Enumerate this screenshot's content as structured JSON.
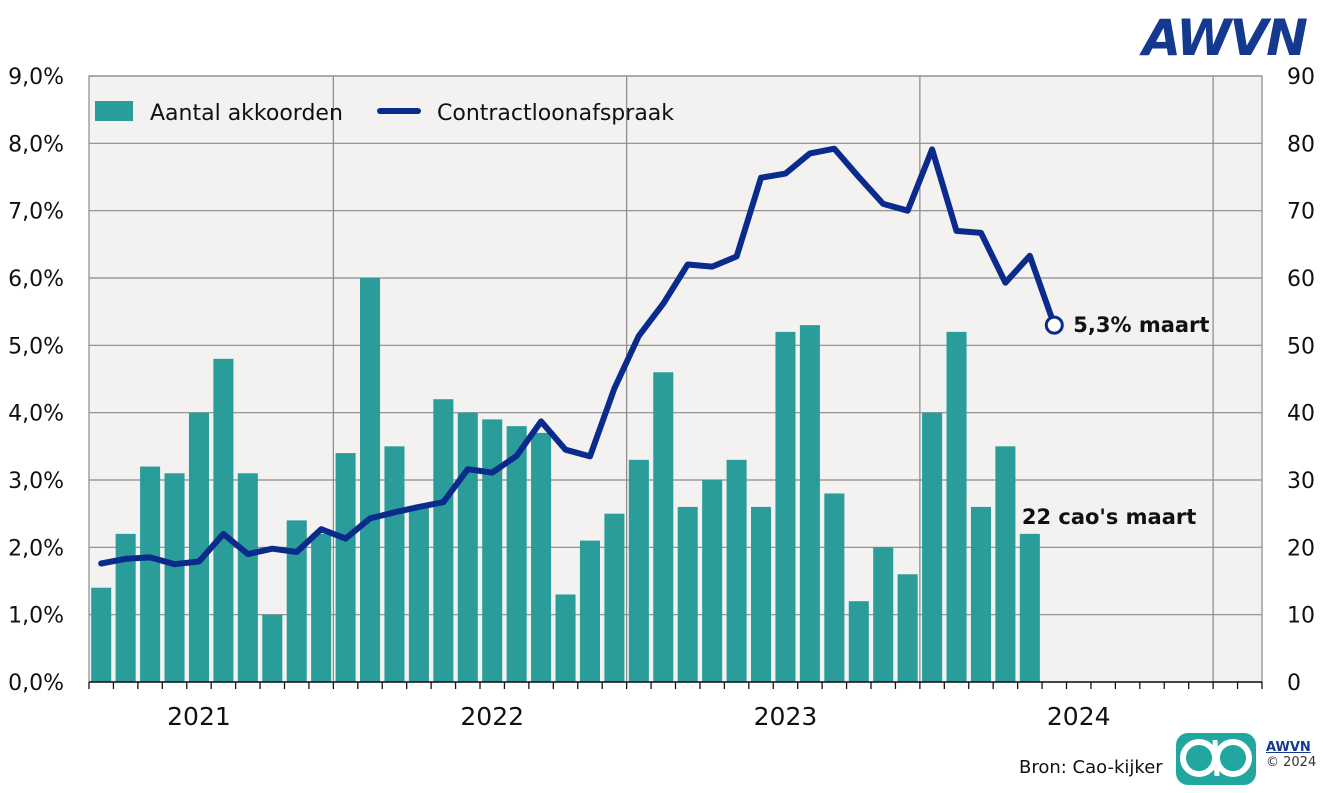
{
  "brand": {
    "logo_text": "AWVN",
    "footer_brand": "AWVN",
    "copyright": "© 2024"
  },
  "source": "Bron: Cao-kijker",
  "colors": {
    "bars": "#2a9d9a",
    "line": "#0b2b8c",
    "plot_bg": "#f3f2f1",
    "logo": "#14398f",
    "footer_logo": "#21a79f"
  },
  "chart_data": {
    "type": "bar+line",
    "legend": {
      "placement": "top-left",
      "entries": [
        "Aantal akkoorden",
        "Contractloonafspraak"
      ]
    },
    "x": {
      "months": [
        "2020-09",
        "2020-10",
        "2020-11",
        "2020-12",
        "2021-01",
        "2021-02",
        "2021-03",
        "2021-04",
        "2021-05",
        "2021-06",
        "2021-07",
        "2021-08",
        "2021-09",
        "2021-10",
        "2021-11",
        "2021-12",
        "2022-01",
        "2022-02",
        "2022-03",
        "2022-04",
        "2022-05",
        "2022-06",
        "2022-07",
        "2022-08",
        "2022-09",
        "2022-10",
        "2022-11",
        "2022-12",
        "2023-01",
        "2023-02",
        "2023-03",
        "2023-04",
        "2023-05",
        "2023-06",
        "2023-07",
        "2023-08",
        "2023-09",
        "2023-10",
        "2023-11",
        "2023-12",
        "2024-01",
        "2024-02",
        "2024-03",
        "2024-04",
        "2024-05",
        "2024-06",
        "2024-07",
        "2024-08"
      ],
      "year_labels": [
        "2021",
        "2022",
        "2023",
        "2024"
      ]
    },
    "left_axis": {
      "ylim": [
        0,
        9
      ],
      "ticks": [
        "0,0%",
        "1,0%",
        "2,0%",
        "3,0%",
        "4,0%",
        "5,0%",
        "6,0%",
        "7,0%",
        "8,0%",
        "9,0%"
      ]
    },
    "right_axis": {
      "ylim": [
        0,
        90
      ],
      "ticks": [
        "0",
        "10",
        "20",
        "30",
        "40",
        "50",
        "60",
        "70",
        "80",
        "90"
      ]
    },
    "series": [
      {
        "name": "Aantal akkoorden",
        "type": "bar",
        "axis": "right",
        "values": [
          14,
          22,
          32,
          31,
          40,
          48,
          31,
          10,
          24,
          22,
          34,
          60,
          35,
          26,
          42,
          40,
          39,
          38,
          37,
          13,
          21,
          25,
          33,
          46,
          26,
          30,
          33,
          26,
          52,
          53,
          28,
          12,
          20,
          16,
          40,
          52,
          26,
          35,
          22
        ]
      },
      {
        "name": "Contractloonafspraak",
        "type": "line",
        "axis": "left",
        "values": [
          1.76,
          1.83,
          1.85,
          1.75,
          1.79,
          2.2,
          1.9,
          1.98,
          1.93,
          2.27,
          2.13,
          2.43,
          2.52,
          2.6,
          2.67,
          3.16,
          3.11,
          3.36,
          3.87,
          3.45,
          3.35,
          4.36,
          5.14,
          5.62,
          6.2,
          6.17,
          6.32,
          7.49,
          7.55,
          7.85,
          7.92,
          7.5,
          7.1,
          7.0,
          7.91,
          6.7,
          6.67,
          5.93,
          6.33,
          5.3
        ]
      }
    ],
    "annotations": [
      {
        "text": "5,3% maart",
        "target": "line-end"
      },
      {
        "text": "22 cao's maart",
        "target": "last-bar"
      }
    ]
  }
}
